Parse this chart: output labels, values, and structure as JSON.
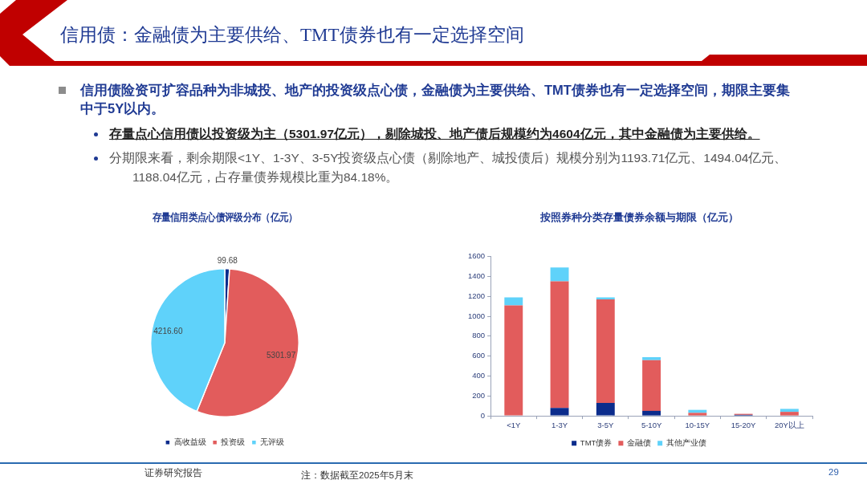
{
  "chart_data": [
    {
      "type": "other",
      "title": "信用债：金融债为主要供给、TMT债券也有一定选择空间",
      "annotations": [
        "信用债险资可扩容品种为非城投、地产的投资级点心债，金融债为主要供给、TMT债券也有一定选择空间，期限主要集中于5Y以内。",
        "存量点心信用债以投资级为主（5301.97亿元），剔除城投、地产债后规模约为4604亿元，其中金融债为主要供给。",
        "分期限来看，剩余期限<1Y、1-3Y、3-5Y投资级点心债（剔除地产、城投债后）规模分别为1193.71亿元、1494.04亿元、1188.04亿元，占存量债券规模比重为84.18%。",
        "证券研究报告",
        "注：数据截至2025年5月末",
        "29"
      ]
    },
    {
      "type": "pie",
      "title": "存量信用类点心债评级分布（亿元）",
      "categories": [
        "高收益级",
        "投资级",
        "无评级"
      ],
      "values": [
        99.68,
        5301.97,
        4216.6
      ],
      "value_labels": [
        "99.68",
        "5301.97",
        "4216.60"
      ],
      "colors": [
        "#0b2c8c",
        "#e25c5c",
        "#5fd2fa"
      ],
      "legend": "bottom"
    },
    {
      "type": "bar",
      "title": "按照券种分类存量债券余额与期限（亿元）",
      "categories": [
        "<1Y",
        "1-3Y",
        "3-5Y",
        "5-10Y",
        "10-15Y",
        "15-20Y",
        "20Y以上"
      ],
      "series": [
        {
          "name": "TMT债券",
          "color": "#0b2c8c",
          "values": [
            null,
            80,
            130,
            50,
            null,
            10,
            null
          ]
        },
        {
          "name": "金融债",
          "color": "#e25c5c",
          "values": [
            1110,
            1270,
            1040,
            510,
            30,
            10,
            40
          ]
        },
        {
          "name": "其他产业债",
          "color": "#5fd2fa",
          "values": [
            80,
            140,
            20,
            30,
            30,
            null,
            30
          ]
        }
      ],
      "stacked": true,
      "ylim": [
        0,
        1600
      ],
      "yticks": [
        0,
        200,
        400,
        600,
        800,
        1000,
        1200,
        1400,
        1600
      ],
      "grid": false,
      "legend": "bottom"
    }
  ]
}
